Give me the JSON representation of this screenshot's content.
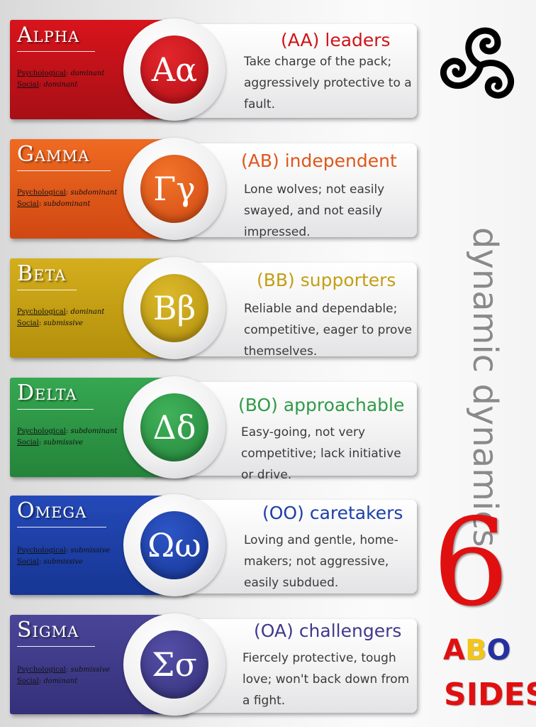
{
  "side": {
    "title": "dynamic dynamics",
    "number": "6",
    "abo": [
      "A",
      "B",
      "O"
    ],
    "sides": "SIDES"
  },
  "labels": {
    "psychological": "Psychological",
    "social": "Social"
  },
  "cards": [
    {
      "name": "Alpha",
      "symbol": "Αα",
      "psych": "dominant",
      "social": "dominant",
      "code": "(AA)",
      "role": "leaders",
      "desc": "Take charge of the pack; aggressively protective to a fault."
    },
    {
      "name": "Gamma",
      "symbol": "Γγ",
      "psych": "subdominant",
      "social": "subdominant",
      "code": "(AB)",
      "role": "independent",
      "desc": "Lone wolves; not easily swayed,  and not easily impressed."
    },
    {
      "name": "Beta",
      "symbol": "Ββ",
      "psych": "dominant",
      "social": "submissive",
      "code": "(BB)",
      "role": "supporters",
      "desc": "Reliable and dependable; competitive, eager to prove themselves."
    },
    {
      "name": "Delta",
      "symbol": "Δδ",
      "psych": "subdominant",
      "social": "submissive",
      "code": "(BO)",
      "role": "approachable",
      "desc": "Easy-going, not very competitive; lack initiative or drive."
    },
    {
      "name": "Omega",
      "symbol": "Ωω",
      "psych": "submissive",
      "social": "submissive",
      "code": "(OO)",
      "role": "caretakers",
      "desc": "Loving and gentle, home-makers; not aggressive, easily subdued."
    },
    {
      "name": "Sigma",
      "symbol": "Σσ",
      "psych": "submissive",
      "social": "dominant",
      "code": "(OA)",
      "role": "challengers",
      "desc": "Fiercely protective, tough love; won't back down from a fight."
    }
  ],
  "colors": {
    "alpha": "#c4121a",
    "gamma": "#e4531a",
    "beta": "#c9a414",
    "delta": "#2f9b47",
    "omega": "#1c3fa8",
    "sigma": "#3f3a8c",
    "six": "#e01010",
    "abo_a": "#e01010",
    "abo_b": "#f3c616",
    "abo_o": "#2630a0"
  }
}
